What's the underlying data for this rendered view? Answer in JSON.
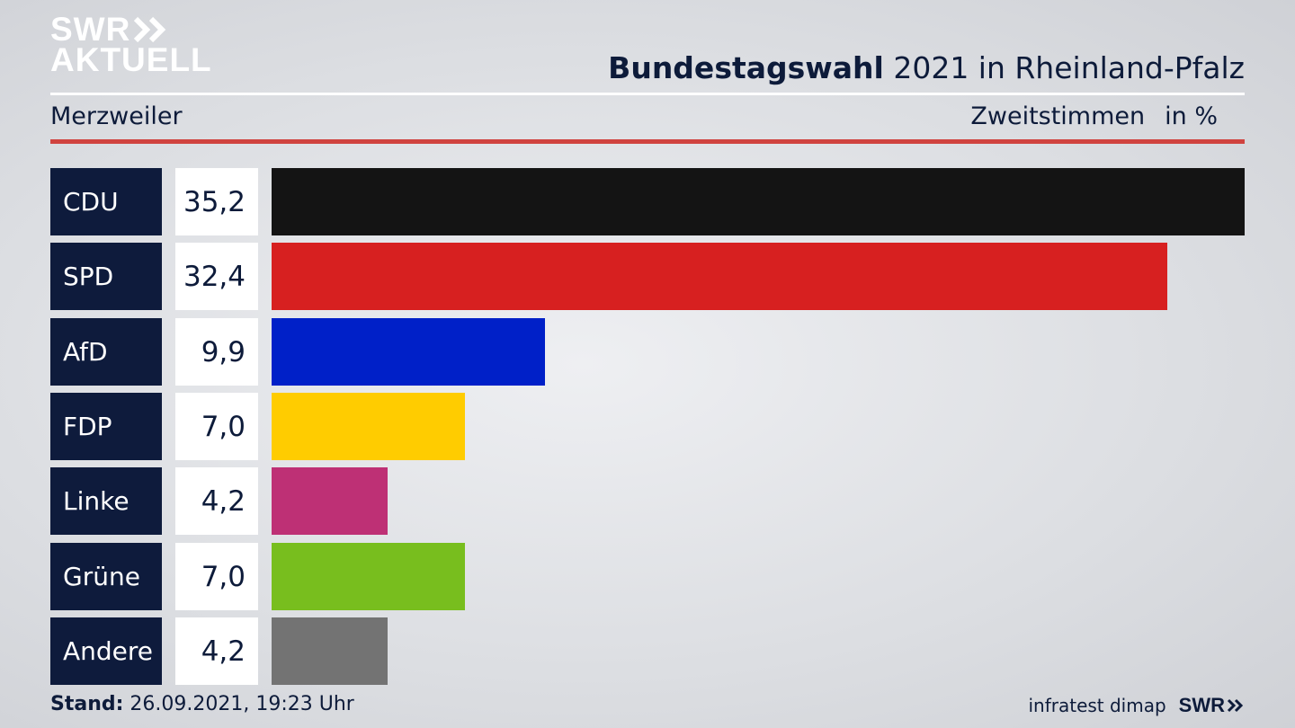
{
  "header": {
    "logo_line1": "SWR",
    "logo_line2": "AKTUELL",
    "title_bold": "Bundestagswahl",
    "title_rest": "2021 in Rheinland-Pfalz",
    "location": "Merzweiler",
    "metric": "Zweitstimmen",
    "unit": "in %"
  },
  "chart_data": {
    "type": "bar",
    "orientation": "horizontal",
    "categories": [
      "CDU",
      "SPD",
      "AfD",
      "FDP",
      "Linke",
      "Grüne",
      "Andere"
    ],
    "values": [
      35.2,
      32.4,
      9.9,
      7.0,
      4.2,
      7.0,
      4.2
    ],
    "value_labels": [
      "35,2",
      "32,4",
      "9,9",
      "7,0",
      "4,2",
      "7,0",
      "4,2"
    ],
    "colors": [
      "#141414",
      "#d72020",
      "#0020c8",
      "#ffcc00",
      "#be3075",
      "#78be1e",
      "#737373"
    ],
    "xlim": [
      0,
      35.2
    ]
  },
  "footer": {
    "stand_label": "Stand:",
    "stand_value": "26.09.2021, 19:23 Uhr",
    "source": "infratest dimap",
    "brand": "SWR"
  }
}
